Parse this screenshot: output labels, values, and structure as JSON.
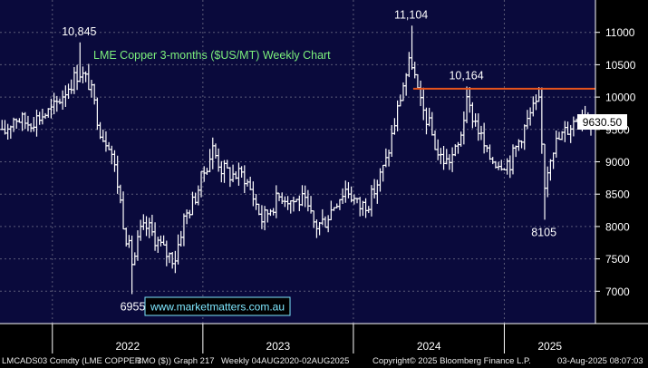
{
  "colors": {
    "background": "#000000",
    "plot_background": "#0a0a3c",
    "grid": "#5a5a78",
    "bars": "#ffffff",
    "resistance_line": "#e8541c",
    "title_text": "#7cf07c",
    "label_text": "#ffffff",
    "price_box": "#ffffff",
    "url_text": "#7fe8ff"
  },
  "chart_data": {
    "type": "ohlc-bar",
    "title": "LME Copper 3-months ($US/MT) Weekly Chart",
    "x_tick_labels": [
      "2022",
      "2023",
      "2024",
      "2025"
    ],
    "ylim": [
      6500,
      11500
    ],
    "y_ticks": [
      7000,
      7500,
      8000,
      8500,
      9000,
      9500,
      10000,
      10500,
      11000
    ],
    "y_tick_labels": [
      "7000",
      "7500",
      "8000",
      "8500",
      "9000",
      "9500",
      "10000",
      "10500",
      "11000"
    ],
    "last_price": "9630.50",
    "resistance_level": 10130,
    "annotations": [
      {
        "text": "10,845",
        "date": "2022-03-07",
        "value": 10845
      },
      {
        "text": "6955",
        "date": "2022-07-15",
        "value": 6955
      },
      {
        "text": "11,104",
        "date": "2024-05-20",
        "value": 11104
      },
      {
        "text": "10,164",
        "date": "2024-10-01",
        "value": 10164
      },
      {
        "text": "8105",
        "date": "2025-04-07",
        "value": 8105
      }
    ],
    "watermark": "www.marketmatters.com.au",
    "series": [
      {
        "date": "2021-09-01",
        "value": 9400
      },
      {
        "date": "2021-10-01",
        "value": 9700
      },
      {
        "date": "2021-11-01",
        "value": 9600
      },
      {
        "date": "2021-12-01",
        "value": 9700
      },
      {
        "date": "2022-01-01",
        "value": 9800
      },
      {
        "date": "2022-02-01",
        "value": 10100
      },
      {
        "date": "2022-03-07",
        "value": 10400
      },
      {
        "date": "2022-04-01",
        "value": 10200
      },
      {
        "date": "2022-05-01",
        "value": 9400
      },
      {
        "date": "2022-05-20",
        "value": 9300
      },
      {
        "date": "2022-06-10",
        "value": 8600
      },
      {
        "date": "2022-06-24",
        "value": 8000
      },
      {
        "date": "2022-07-15",
        "value": 7400
      },
      {
        "date": "2022-08-01",
        "value": 7900
      },
      {
        "date": "2022-08-20",
        "value": 8000
      },
      {
        "date": "2022-09-10",
        "value": 7800
      },
      {
        "date": "2022-10-01",
        "value": 7600
      },
      {
        "date": "2022-10-25",
        "value": 7500
      },
      {
        "date": "2022-11-15",
        "value": 8100
      },
      {
        "date": "2022-12-10",
        "value": 8400
      },
      {
        "date": "2023-01-01",
        "value": 8800
      },
      {
        "date": "2023-01-25",
        "value": 9200
      },
      {
        "date": "2023-02-15",
        "value": 8900
      },
      {
        "date": "2023-03-10",
        "value": 8800
      },
      {
        "date": "2023-04-10",
        "value": 8800
      },
      {
        "date": "2023-05-01",
        "value": 8500
      },
      {
        "date": "2023-05-25",
        "value": 8100
      },
      {
        "date": "2023-06-15",
        "value": 8300
      },
      {
        "date": "2023-07-10",
        "value": 8500
      },
      {
        "date": "2023-08-05",
        "value": 8400
      },
      {
        "date": "2023-09-01",
        "value": 8400
      },
      {
        "date": "2023-10-01",
        "value": 8000
      },
      {
        "date": "2023-10-25",
        "value": 8100
      },
      {
        "date": "2023-11-20",
        "value": 8400
      },
      {
        "date": "2023-12-15",
        "value": 8600
      },
      {
        "date": "2024-01-15",
        "value": 8300
      },
      {
        "date": "2024-02-10",
        "value": 8400
      },
      {
        "date": "2024-03-01",
        "value": 8700
      },
      {
        "date": "2024-03-20",
        "value": 9000
      },
      {
        "date": "2024-04-10",
        "value": 9600
      },
      {
        "date": "2024-05-01",
        "value": 10200
      },
      {
        "date": "2024-05-20",
        "value": 10600
      },
      {
        "date": "2024-06-10",
        "value": 9900
      },
      {
        "date": "2024-07-01",
        "value": 9600
      },
      {
        "date": "2024-07-25",
        "value": 9100
      },
      {
        "date": "2024-08-15",
        "value": 9000
      },
      {
        "date": "2024-09-10",
        "value": 9200
      },
      {
        "date": "2024-10-01",
        "value": 9900
      },
      {
        "date": "2024-10-25",
        "value": 9600
      },
      {
        "date": "2024-11-20",
        "value": 9100
      },
      {
        "date": "2024-12-15",
        "value": 9000
      },
      {
        "date": "2025-01-15",
        "value": 9000
      },
      {
        "date": "2025-02-10",
        "value": 9400
      },
      {
        "date": "2025-03-10",
        "value": 9800
      },
      {
        "date": "2025-03-28",
        "value": 9900
      },
      {
        "date": "2025-04-07",
        "value": 8600
      },
      {
        "date": "2025-04-25",
        "value": 9200
      },
      {
        "date": "2025-05-20",
        "value": 9400
      },
      {
        "date": "2025-06-15",
        "value": 9600
      },
      {
        "date": "2025-07-10",
        "value": 9800
      },
      {
        "date": "2025-07-31",
        "value": 9630
      }
    ]
  },
  "footer": {
    "ticker": "LMCADS03 Comdty (LME COPPER",
    "metric": "3MO ($)) Graph 217",
    "range": "Weekly 04AUG2020-02AUG2025",
    "copyright": "Copyright© 2025 Bloomberg Finance L.P.",
    "timestamp": "03-Aug-2025 08:07:03"
  }
}
